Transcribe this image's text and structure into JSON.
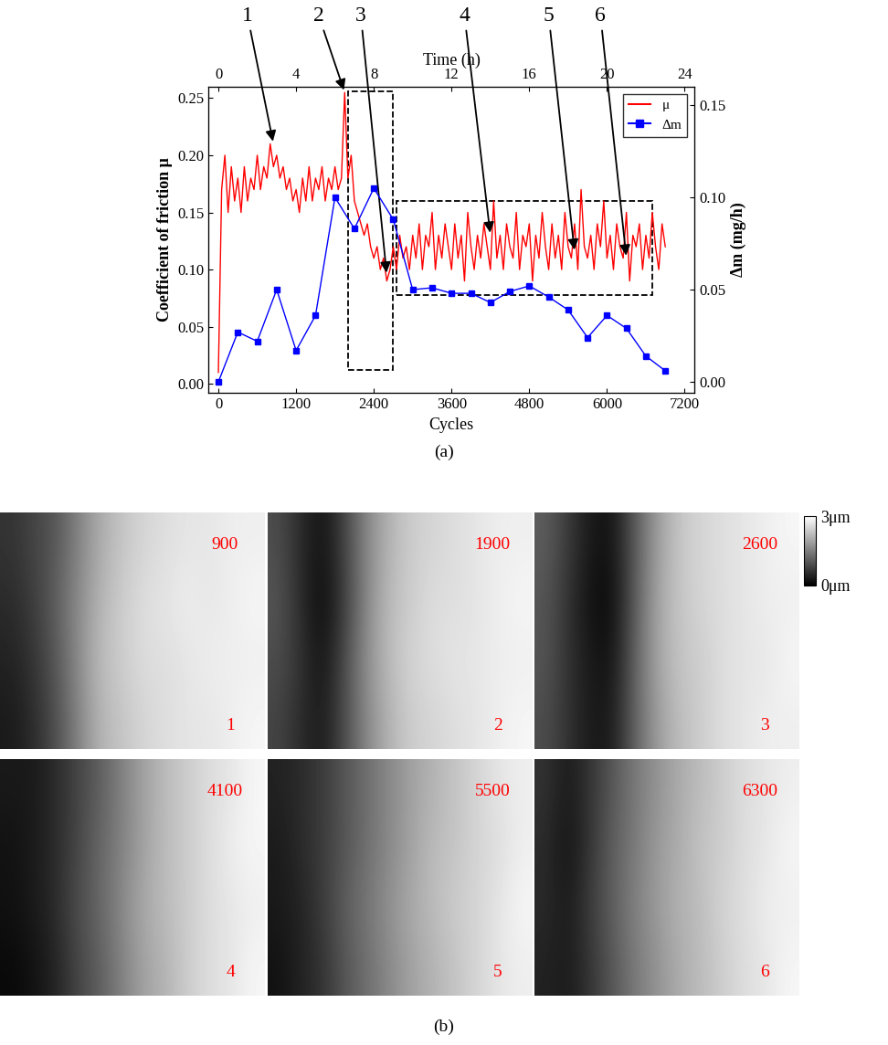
{
  "chart_data": [
    {
      "type": "line",
      "panel_label": "(a)",
      "xlabel": "Cycles",
      "ylabel": "Coefficient of friction μ",
      "x2label": "Time (h)",
      "y2label": "Δm (mg/h)",
      "xlim": [
        -150,
        7350
      ],
      "xticks": [
        0,
        1200,
        2400,
        3600,
        4800,
        6000,
        7200
      ],
      "x2lim": [
        -0.5,
        24.5
      ],
      "x2ticks": [
        0,
        4,
        8,
        12,
        16,
        20,
        24
      ],
      "ylim": [
        -0.008,
        0.26
      ],
      "yticks": [
        {
          "value": 0,
          "label": "0.00"
        },
        {
          "value": 0.05,
          "label": "0.05"
        },
        {
          "value": 0.1,
          "label": "0.10"
        },
        {
          "value": 0.15,
          "label": "0.15"
        },
        {
          "value": 0.2,
          "label": "0.20"
        },
        {
          "value": 0.25,
          "label": "0.25"
        }
      ],
      "y2lim": [
        -0.006,
        0.16
      ],
      "y2ticks": [
        {
          "value": 0,
          "label": "0.00"
        },
        {
          "value": 0.05,
          "label": "0.05"
        },
        {
          "value": 0.1,
          "label": "0.10"
        },
        {
          "value": 0.15,
          "label": "0.15"
        }
      ],
      "legend": "upper right",
      "series": [
        {
          "name": "μ",
          "color": "#ff0000",
          "line_style": "solid",
          "x": [
            0,
            50,
            100,
            150,
            200,
            250,
            300,
            350,
            400,
            450,
            500,
            550,
            600,
            650,
            700,
            750,
            800,
            850,
            900,
            950,
            1000,
            1050,
            1100,
            1150,
            1200,
            1250,
            1300,
            1350,
            1400,
            1450,
            1500,
            1550,
            1600,
            1650,
            1700,
            1750,
            1800,
            1850,
            1900,
            1950,
            2000,
            2050,
            2100,
            2150,
            2200,
            2250,
            2300,
            2350,
            2400,
            2450,
            2500,
            2550,
            2600,
            2650,
            2700,
            2750,
            2800,
            2850,
            2900,
            2950,
            3000,
            3050,
            3100,
            3150,
            3200,
            3250,
            3300,
            3350,
            3400,
            3450,
            3500,
            3550,
            3600,
            3650,
            3700,
            3750,
            3800,
            3850,
            3900,
            3950,
            4000,
            4050,
            4100,
            4150,
            4200,
            4250,
            4300,
            4350,
            4400,
            4450,
            4500,
            4550,
            4600,
            4650,
            4700,
            4750,
            4800,
            4850,
            4900,
            4950,
            5000,
            5050,
            5100,
            5150,
            5200,
            5250,
            5300,
            5350,
            5400,
            5450,
            5500,
            5550,
            5600,
            5650,
            5700,
            5750,
            5800,
            5850,
            5900,
            5950,
            6000,
            6050,
            6100,
            6150,
            6200,
            6250,
            6300,
            6350,
            6400,
            6450,
            6500,
            6550,
            6600,
            6650,
            6700,
            6750,
            6800,
            6850,
            6900
          ],
          "values": [
            0.01,
            0.17,
            0.2,
            0.15,
            0.19,
            0.16,
            0.18,
            0.15,
            0.19,
            0.16,
            0.18,
            0.17,
            0.2,
            0.17,
            0.19,
            0.18,
            0.21,
            0.19,
            0.2,
            0.18,
            0.19,
            0.17,
            0.18,
            0.16,
            0.17,
            0.15,
            0.18,
            0.16,
            0.19,
            0.16,
            0.18,
            0.17,
            0.19,
            0.16,
            0.18,
            0.17,
            0.19,
            0.17,
            0.18,
            0.255,
            0.18,
            0.2,
            0.16,
            0.15,
            0.14,
            0.13,
            0.14,
            0.12,
            0.11,
            0.12,
            0.1,
            0.11,
            0.09,
            0.1,
            0.12,
            0.1,
            0.13,
            0.11,
            0.12,
            0.1,
            0.13,
            0.11,
            0.14,
            0.1,
            0.13,
            0.12,
            0.15,
            0.1,
            0.13,
            0.11,
            0.14,
            0.12,
            0.1,
            0.14,
            0.11,
            0.13,
            0.09,
            0.15,
            0.12,
            0.1,
            0.13,
            0.11,
            0.14,
            0.12,
            0.1,
            0.16,
            0.11,
            0.13,
            0.1,
            0.14,
            0.12,
            0.11,
            0.15,
            0.1,
            0.13,
            0.12,
            0.14,
            0.09,
            0.13,
            0.11,
            0.15,
            0.12,
            0.1,
            0.14,
            0.11,
            0.13,
            0.1,
            0.15,
            0.12,
            0.11,
            0.14,
            0.1,
            0.17,
            0.12,
            0.11,
            0.13,
            0.1,
            0.14,
            0.12,
            0.16,
            0.11,
            0.13,
            0.1,
            0.14,
            0.12,
            0.11,
            0.15,
            0.09,
            0.13,
            0.12,
            0.14,
            0.1,
            0.13,
            0.11,
            0.15,
            0.12,
            0.1,
            0.14,
            0.12
          ]
        },
        {
          "name": "Δm",
          "color": "#0000ff",
          "marker": "square",
          "line_style": "solid",
          "axis": "y2",
          "x": [
            0,
            300,
            600,
            900,
            1200,
            1500,
            1800,
            2100,
            2400,
            2700,
            3000,
            3300,
            3600,
            3900,
            4200,
            4500,
            4800,
            5100,
            5400,
            5700,
            6000,
            6300,
            6600,
            6900
          ],
          "values": [
            0.0,
            0.027,
            0.022,
            0.05,
            0.017,
            0.036,
            0.1,
            0.083,
            0.105,
            0.088,
            0.05,
            0.051,
            0.048,
            0.048,
            0.043,
            0.049,
            0.052,
            0.046,
            0.039,
            0.024,
            0.036,
            0.029,
            0.014,
            0.006
          ]
        }
      ],
      "annotations": [
        {
          "text": "1",
          "x": 850,
          "y": 0.21
        },
        {
          "text": "2",
          "x": 1950,
          "y": 0.255
        },
        {
          "text": "3",
          "x": 2600,
          "y": 0.095
        },
        {
          "text": "4",
          "x": 4200,
          "y": 0.13
        },
        {
          "text": "5",
          "x": 5500,
          "y": 0.115
        },
        {
          "text": "6",
          "x": 6300,
          "y": 0.11
        }
      ],
      "boxes": [
        {
          "x": [
            2000,
            2700
          ],
          "y": [
            0.012,
            0.256
          ]
        },
        {
          "x": [
            2750,
            6700
          ],
          "y": [
            0.078,
            0.16
          ]
        }
      ]
    },
    {
      "type": "image_grid",
      "panel_label": "(b)",
      "colorbar": {
        "range": [
          0,
          3
        ],
        "ticks": [
          {
            "value": 0,
            "label": "0μm"
          },
          {
            "value": 3,
            "label": "3μm"
          }
        ]
      },
      "panels": [
        {
          "cycles": 900,
          "index": 1,
          "cells": [
            [
              0.6,
              0.8,
              1.0,
              1.5,
              2.0,
              2.3,
              2.5,
              2.6,
              2.7,
              2.7,
              2.8,
              2.8
            ],
            [
              0.5,
              0.7,
              1.1,
              1.6,
              2.1,
              2.4,
              2.6,
              2.7,
              2.8,
              2.7,
              2.8,
              2.9
            ],
            [
              0.4,
              0.6,
              1.0,
              1.6,
              2.2,
              2.4,
              2.6,
              2.6,
              2.7,
              2.8,
              2.8,
              2.8
            ],
            [
              0.3,
              0.5,
              0.9,
              1.5,
              2.1,
              2.3,
              2.5,
              2.6,
              2.7,
              2.7,
              2.8,
              2.9
            ]
          ]
        },
        {
          "cycles": 1900,
          "index": 2,
          "cells": [
            [
              0.9,
              0.5,
              0.2,
              0.8,
              1.6,
              2.1,
              2.4,
              2.5,
              2.6,
              2.7,
              2.8,
              2.8
            ],
            [
              1.0,
              0.5,
              0.1,
              0.7,
              1.6,
              2.2,
              2.4,
              2.6,
              2.6,
              2.7,
              2.8,
              2.9
            ],
            [
              0.9,
              0.6,
              0.2,
              0.9,
              1.7,
              2.2,
              2.5,
              2.6,
              2.7,
              2.7,
              2.8,
              2.8
            ],
            [
              0.8,
              0.5,
              0.3,
              0.9,
              1.6,
              2.1,
              2.4,
              2.5,
              2.6,
              2.7,
              2.8,
              2.9
            ]
          ]
        },
        {
          "cycles": 2600,
          "index": 3,
          "cells": [
            [
              1.1,
              0.7,
              0.3,
              0.2,
              1.0,
              1.8,
              2.3,
              2.5,
              2.6,
              2.7,
              2.8,
              2.9
            ],
            [
              1.0,
              0.6,
              0.2,
              0.1,
              1.0,
              1.9,
              2.3,
              2.5,
              2.6,
              2.7,
              2.8,
              2.8
            ],
            [
              1.0,
              0.6,
              0.3,
              0.2,
              1.1,
              1.9,
              2.3,
              2.4,
              2.6,
              2.7,
              2.7,
              2.9
            ],
            [
              0.9,
              0.6,
              0.3,
              0.3,
              1.1,
              1.8,
              2.2,
              2.4,
              2.6,
              2.7,
              2.8,
              2.8
            ]
          ]
        },
        {
          "cycles": 4100,
          "index": 4,
          "cells": [
            [
              0.3,
              0.3,
              0.5,
              0.8,
              1.1,
              1.5,
              1.9,
              2.2,
              2.4,
              2.6,
              2.7,
              2.9
            ],
            [
              0.2,
              0.3,
              0.5,
              0.8,
              1.2,
              1.5,
              1.9,
              2.2,
              2.4,
              2.6,
              2.8,
              2.9
            ],
            [
              0.2,
              0.3,
              0.5,
              0.9,
              1.2,
              1.6,
              2.0,
              2.2,
              2.4,
              2.6,
              2.7,
              2.8
            ],
            [
              0.1,
              0.2,
              0.4,
              0.8,
              1.1,
              1.5,
              1.9,
              2.1,
              2.4,
              2.6,
              2.7,
              2.9
            ]
          ]
        },
        {
          "cycles": 5500,
          "index": 5,
          "cells": [
            [
              0.4,
              0.5,
              0.7,
              1.0,
              1.3,
              1.6,
              1.9,
              2.1,
              2.3,
              2.5,
              2.7,
              2.8
            ],
            [
              0.3,
              0.5,
              0.7,
              1.0,
              1.3,
              1.6,
              1.9,
              2.2,
              2.3,
              2.5,
              2.6,
              2.8
            ],
            [
              0.3,
              0.4,
              0.7,
              1.1,
              1.4,
              1.7,
              2.0,
              2.2,
              2.4,
              2.5,
              2.7,
              2.9
            ],
            [
              0.2,
              0.4,
              0.6,
              1.0,
              1.3,
              1.6,
              1.9,
              2.1,
              2.3,
              2.5,
              2.7,
              2.8
            ]
          ]
        },
        {
          "cycles": 6300,
          "index": 6,
          "cells": [
            [
              0.6,
              0.3,
              0.6,
              1.0,
              1.4,
              1.7,
              2.0,
              2.2,
              2.4,
              2.6,
              2.7,
              2.8
            ],
            [
              0.5,
              0.2,
              0.6,
              1.1,
              1.4,
              1.8,
              2.0,
              2.3,
              2.4,
              2.6,
              2.7,
              2.9
            ],
            [
              0.5,
              0.3,
              0.7,
              1.1,
              1.5,
              1.8,
              2.1,
              2.2,
              2.5,
              2.6,
              2.8,
              2.8
            ],
            [
              0.4,
              0.3,
              0.6,
              1.0,
              1.4,
              1.7,
              2.0,
              2.2,
              2.4,
              2.6,
              2.7,
              2.9
            ]
          ]
        }
      ]
    }
  ]
}
